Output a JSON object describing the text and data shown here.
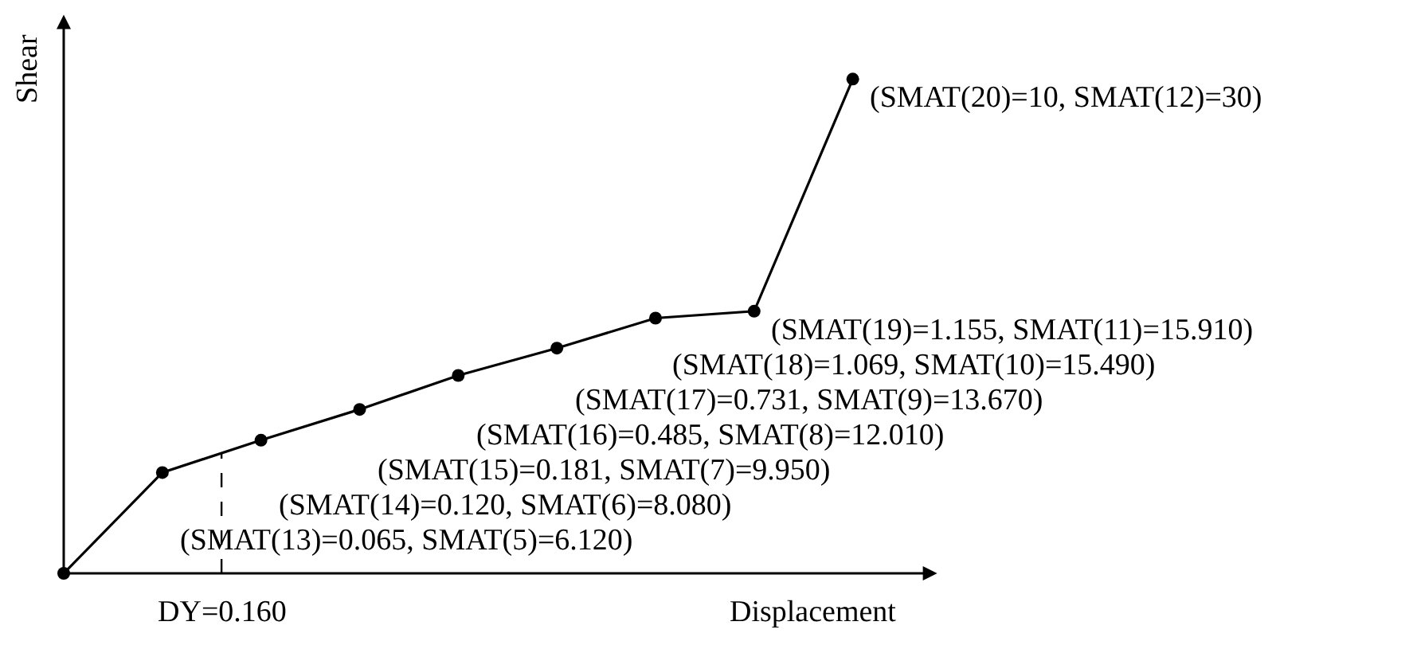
{
  "chart_data": {
    "type": "line",
    "xlabel": "Displacement",
    "ylabel": "Shear",
    "marker": "circle",
    "line_style": "solid",
    "grid": false,
    "categories": [
      null,
      null,
      null,
      null,
      null,
      null,
      null,
      null,
      null
    ],
    "series": [
      {
        "color": "#000000",
        "values": [
          0,
          6.12,
          8.08,
          9.95,
          12.01,
          13.67,
          15.49,
          15.91,
          30
        ],
        "value_labels": [
          null,
          "(SMAT(13)=0.065, SMAT(5)=6.120)",
          "(SMAT(14)=0.120, SMAT(6)=8.080)",
          "(SMAT(15)=0.181, SMAT(7)=9.950)",
          "(SMAT(16)=0.485, SMAT(8)=12.010)",
          "(SMAT(17)=0.731, SMAT(9)=13.670)",
          "(SMAT(18)=1.069, SMAT(10)=15.490)",
          "(SMAT(19)=1.155, SMAT(11)=15.910)",
          "(SMAT(20)=10, SMAT(12)=30)"
        ]
      }
    ],
    "annotations": [
      "DY=0.160"
    ]
  }
}
